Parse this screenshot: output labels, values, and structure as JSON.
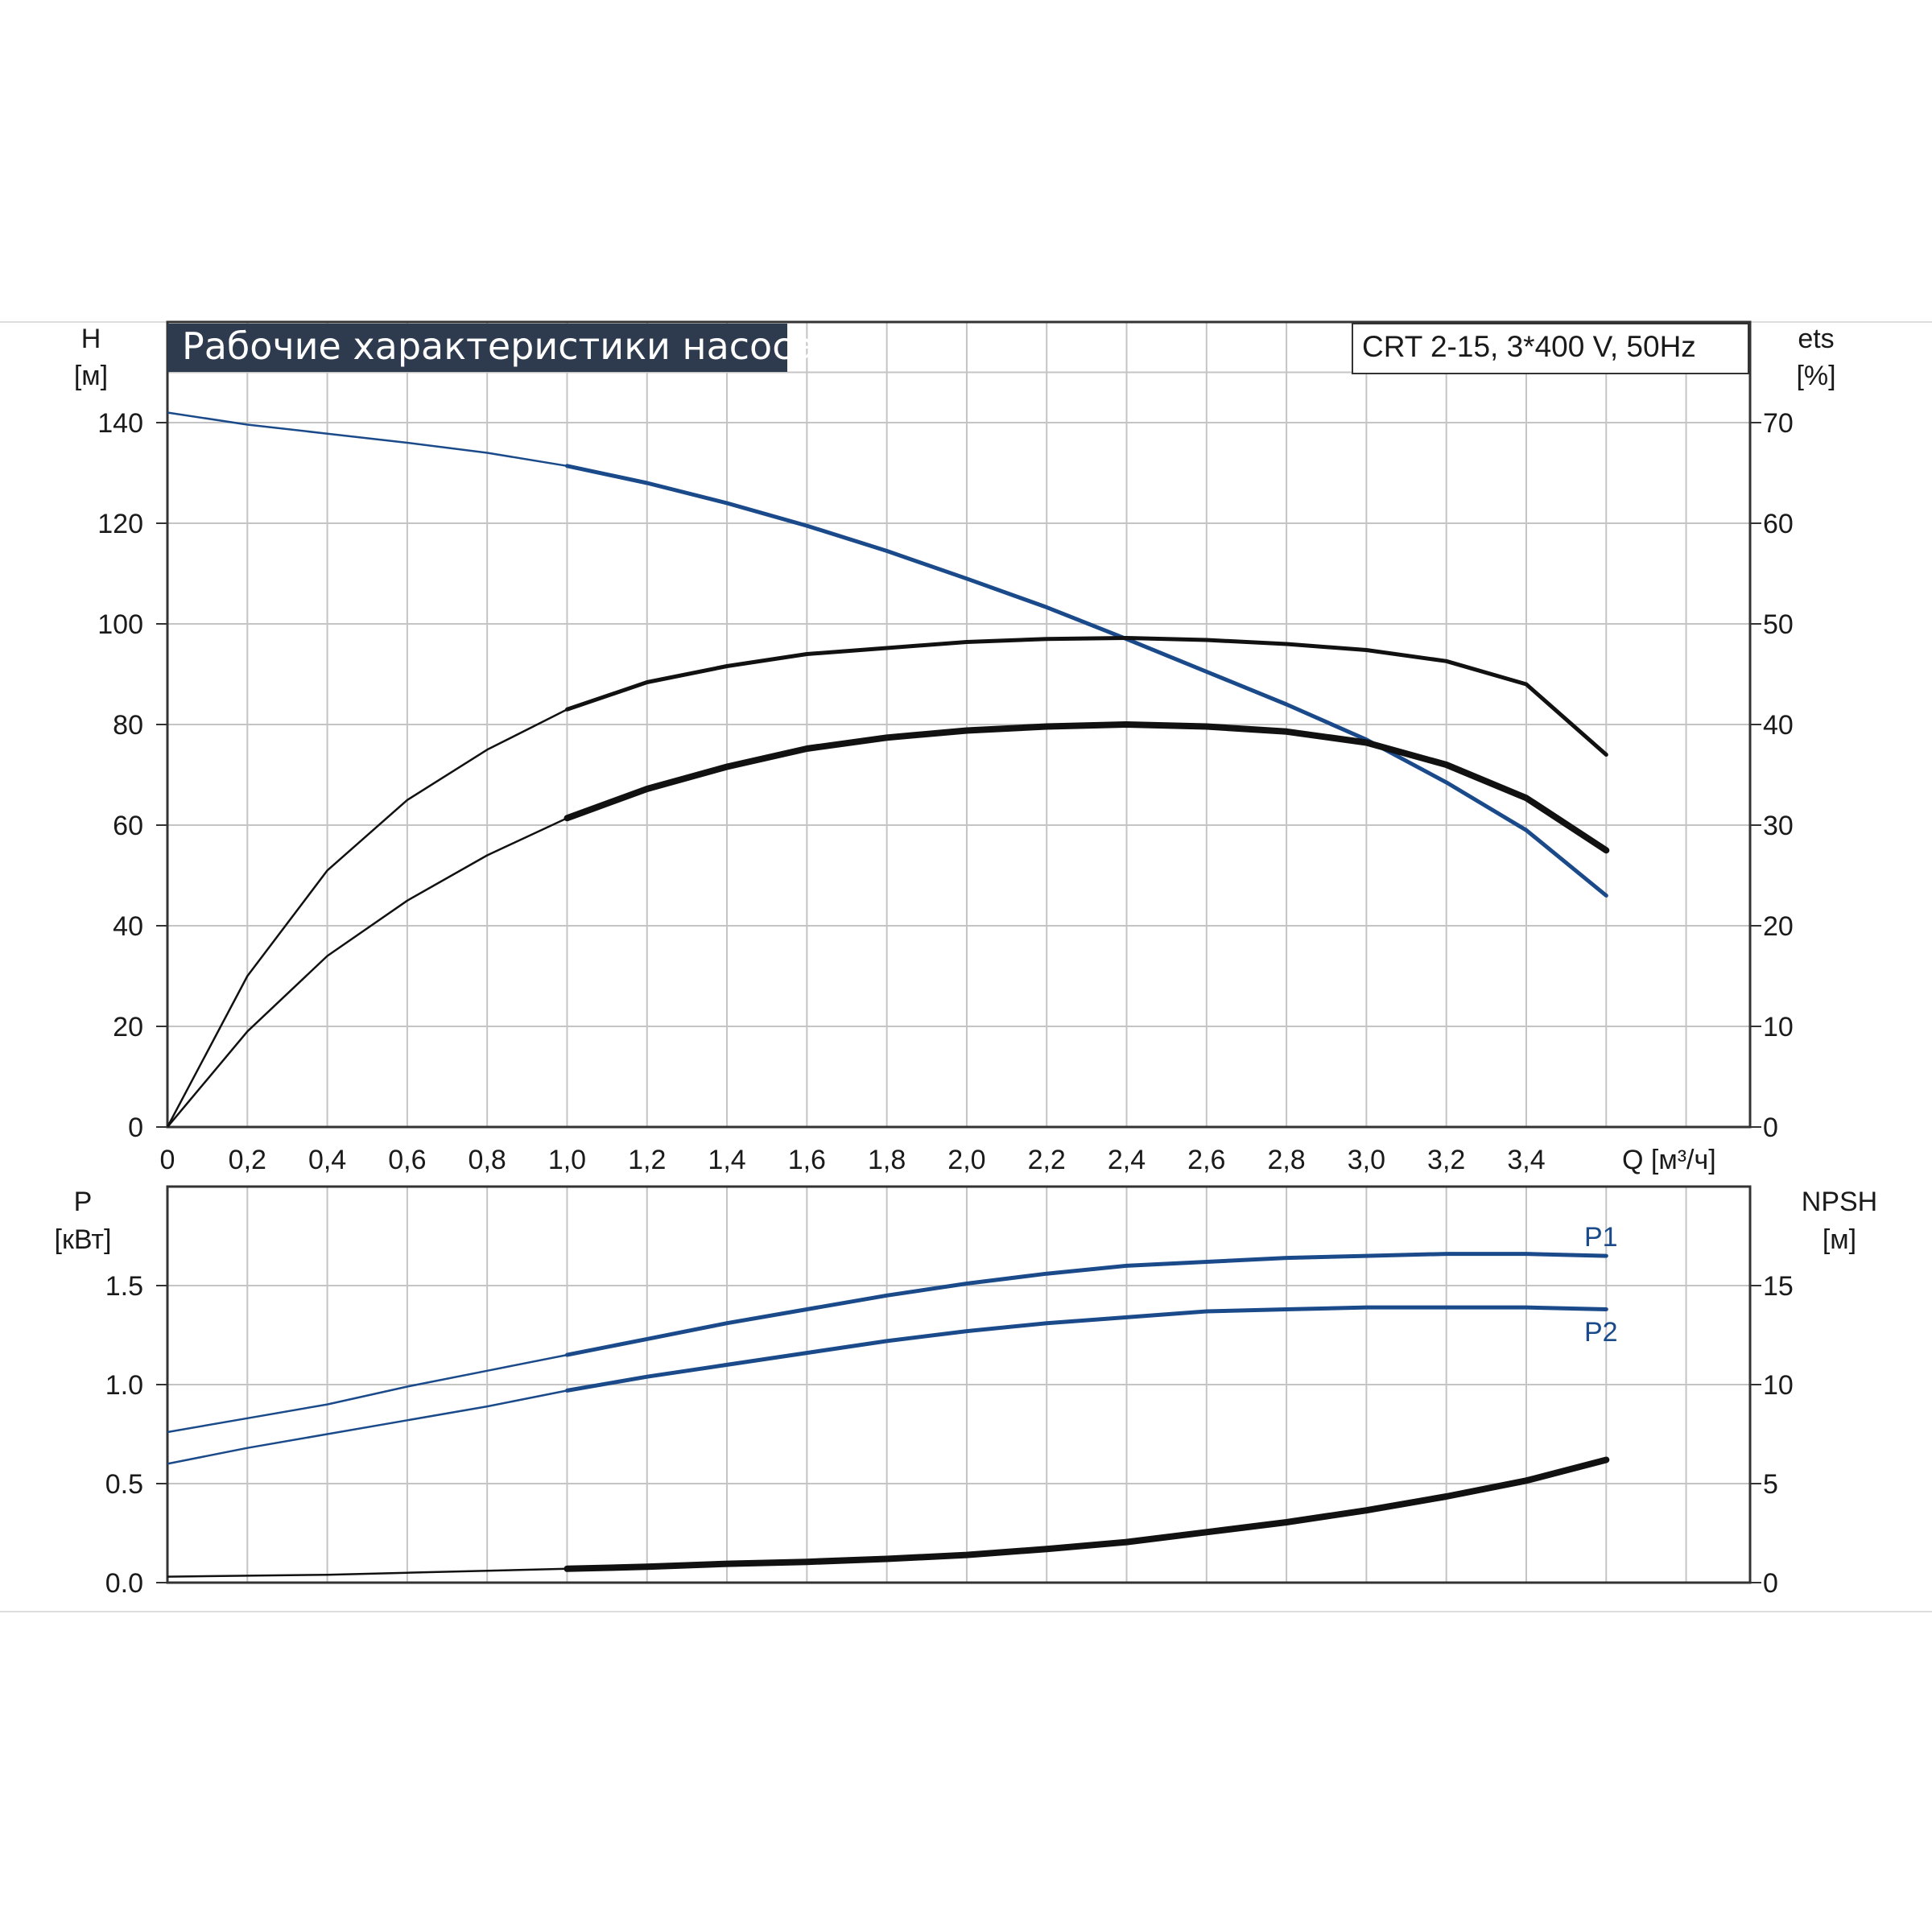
{
  "colors": {
    "blue": "#1a4a8a",
    "black": "#111111",
    "grid": "#c4c4c4",
    "title_bg": "#2e3b4e",
    "frame_line": "#dddddd"
  },
  "title": "Рабочие характеристики насоса",
  "model": "CRT 2-15, 3*400 V, 50Hz",
  "top_axes": {
    "left_label": "H",
    "left_unit": "[м]",
    "right_label": "ets",
    "right_unit": "[%]",
    "x_label": "Q [м³/ч]",
    "x_ticks": [
      "0",
      "0,2",
      "0,4",
      "0,6",
      "0,8",
      "1,0",
      "1,2",
      "1,4",
      "1,6",
      "1,8",
      "2,0",
      "2,2",
      "2,4",
      "2,6",
      "2,8",
      "3,0",
      "3,2",
      "3,4"
    ],
    "left_ticks": [
      "0",
      "20",
      "40",
      "60",
      "80",
      "100",
      "120",
      "140"
    ],
    "right_ticks": [
      "0",
      "10",
      "20",
      "30",
      "40",
      "50",
      "60",
      "70"
    ]
  },
  "bottom_axes": {
    "left_label": "P",
    "left_unit": "[кВт]",
    "right_label": "NPSH",
    "right_unit": "[м]",
    "left_ticks": [
      "0.0",
      "0.5",
      "1.0",
      "1.5"
    ],
    "right_ticks": [
      "0",
      "5",
      "10",
      "15"
    ]
  },
  "series_labels": {
    "p1": "P1",
    "p2": "P2"
  },
  "chart_data": [
    {
      "type": "line",
      "title": "Рабочие характеристики насоса",
      "xlabel": "Q [м³/ч]",
      "ylabel": "H [м]",
      "y2label": "ets [%]",
      "xlim": [
        0,
        3.96
      ],
      "ylim": [
        0,
        160
      ],
      "y2lim": [
        0,
        80
      ],
      "grid": true,
      "series": [
        {
          "axis": "left",
          "color": "#1a4a8a",
          "duty_from_x": 1.0,
          "x": [
            0,
            0.2,
            0.4,
            0.6,
            0.8,
            1.0,
            1.2,
            1.4,
            1.6,
            1.8,
            2.0,
            2.2,
            2.4,
            2.6,
            2.8,
            3.0,
            3.2,
            3.4,
            3.6
          ],
          "y": [
            142,
            139.6,
            137.8,
            136,
            134,
            131.4,
            128,
            124,
            119.5,
            114.5,
            109,
            103.3,
            97,
            90.5,
            84,
            77,
            68.5,
            59,
            46
          ]
        },
        {
          "axis": "right",
          "color": "#111111",
          "duty_from_x": 1.0,
          "x": [
            0,
            0.2,
            0.4,
            0.6,
            0.8,
            1.0,
            1.2,
            1.4,
            1.6,
            1.8,
            2.0,
            2.2,
            2.4,
            2.6,
            2.8,
            3.0,
            3.2,
            3.4,
            3.6
          ],
          "y": [
            0,
            15,
            25.5,
            32.5,
            37.5,
            41.5,
            44.2,
            45.8,
            47,
            47.6,
            48.2,
            48.5,
            48.6,
            48.4,
            48,
            47.4,
            46.3,
            44,
            37
          ]
        },
        {
          "axis": "right",
          "color": "#111111",
          "thick": true,
          "duty_from_x": 1.0,
          "x": [
            0,
            0.2,
            0.4,
            0.6,
            0.8,
            1.0,
            1.2,
            1.4,
            1.6,
            1.8,
            2.0,
            2.2,
            2.4,
            2.6,
            2.8,
            3.0,
            3.2,
            3.4,
            3.6
          ],
          "y": [
            0,
            9.5,
            17,
            22.5,
            27,
            30.7,
            33.6,
            35.8,
            37.6,
            38.7,
            39.4,
            39.8,
            40,
            39.8,
            39.3,
            38.2,
            36,
            32.7,
            27.5
          ]
        }
      ]
    },
    {
      "type": "line",
      "xlabel": "Q [м³/ч]",
      "ylabel": "P [кВт]",
      "y2label": "NPSH [м]",
      "xlim": [
        0,
        3.96
      ],
      "ylim": [
        0,
        2.0
      ],
      "y2lim": [
        0,
        20
      ],
      "grid": true,
      "series": [
        {
          "name": "P1",
          "axis": "left",
          "color": "#1a4a8a",
          "duty_from_x": 1.0,
          "x": [
            0,
            0.2,
            0.4,
            0.6,
            0.8,
            1.0,
            1.2,
            1.4,
            1.6,
            1.8,
            2.0,
            2.2,
            2.4,
            2.6,
            2.8,
            3.0,
            3.2,
            3.4,
            3.6
          ],
          "y": [
            0.76,
            0.83,
            0.9,
            0.99,
            1.07,
            1.15,
            1.23,
            1.31,
            1.38,
            1.45,
            1.51,
            1.56,
            1.6,
            1.62,
            1.64,
            1.65,
            1.66,
            1.66,
            1.65
          ]
        },
        {
          "name": "P2",
          "axis": "left",
          "color": "#1a4a8a",
          "duty_from_x": 1.0,
          "x": [
            0,
            0.2,
            0.4,
            0.6,
            0.8,
            1.0,
            1.2,
            1.4,
            1.6,
            1.8,
            2.0,
            2.2,
            2.4,
            2.6,
            2.8,
            3.0,
            3.2,
            3.4,
            3.6
          ],
          "y": [
            0.6,
            0.68,
            0.75,
            0.82,
            0.89,
            0.97,
            1.04,
            1.1,
            1.16,
            1.22,
            1.27,
            1.31,
            1.34,
            1.37,
            1.38,
            1.39,
            1.39,
            1.39,
            1.38
          ]
        },
        {
          "axis": "right",
          "color": "#111111",
          "thick": true,
          "duty_from_x": 1.0,
          "x": [
            0,
            0.2,
            0.4,
            0.6,
            0.8,
            1.0,
            1.2,
            1.4,
            1.6,
            1.8,
            2.0,
            2.2,
            2.4,
            2.6,
            2.8,
            3.0,
            3.2,
            3.4,
            3.6
          ],
          "y": [
            0.3,
            0.35,
            0.4,
            0.5,
            0.6,
            0.7,
            0.8,
            0.95,
            1.05,
            1.2,
            1.4,
            1.7,
            2.05,
            2.55,
            3.05,
            3.65,
            4.35,
            5.15,
            6.2
          ]
        }
      ]
    }
  ]
}
